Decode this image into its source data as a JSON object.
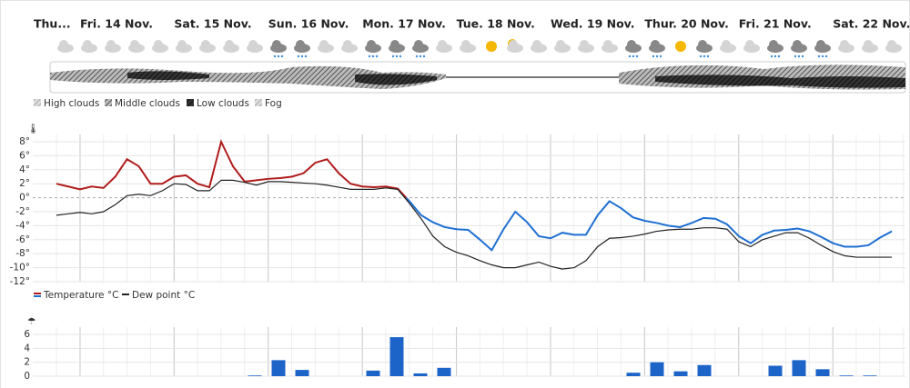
{
  "days": [
    "Thu...",
    "Fri. 14 Nov.",
    "Sat. 15 Nov.",
    "Sun. 16 Nov.",
    "Mon. 17 Nov.",
    "Tue. 18 Nov.",
    "Wed. 19 Nov.",
    "Thur. 20 Nov.",
    "Fri. 21 Nov.",
    "Sat. 22 Nov."
  ],
  "cloud_legend": [
    "High clouds",
    "Middle clouds",
    "Low clouds",
    "Fog"
  ],
  "chart_data": [
    {
      "type": "line",
      "ylim": [
        -12,
        8
      ],
      "yticks": [
        {
          "value": 8,
          "label": "8°"
        },
        {
          "value": 6,
          "label": "6°"
        },
        {
          "value": 4,
          "label": "4°"
        },
        {
          "value": 2,
          "label": "2°"
        },
        {
          "value": 0,
          "label": "0°"
        },
        {
          "value": -2,
          "label": "-2°"
        },
        {
          "value": -4,
          "label": "-4°"
        },
        {
          "value": -6,
          "label": "-6°"
        },
        {
          "value": -8,
          "label": "-8°"
        },
        {
          "value": -10,
          "label": "-10°"
        },
        {
          "value": -12,
          "label": "-12°"
        }
      ],
      "grid": true,
      "zero_line": true,
      "series": [
        {
          "name": "Temperature °C",
          "color": "#b01c1c",
          "negative_color": "#1f6fd1",
          "values": [
            2.0,
            1.6,
            1.2,
            1.6,
            1.4,
            3.0,
            5.5,
            4.5,
            2.0,
            2.0,
            3.0,
            3.2,
            2.0,
            1.5,
            8.0,
            4.5,
            2.3,
            2.5,
            2.7,
            2.8,
            3.0,
            3.5,
            5.0,
            5.5,
            3.5,
            2.0,
            1.6,
            1.5,
            1.6,
            1.3,
            -0.5,
            -2.5,
            -3.5,
            -4.2,
            -4.5,
            -4.6,
            -6.0,
            -7.5,
            -4.5,
            -2.0,
            -3.5,
            -5.5,
            -5.8,
            -5.0,
            -5.3,
            -5.3,
            -2.5,
            -0.5,
            -1.5,
            -2.8,
            -3.3,
            -3.6,
            -4.0,
            -4.2,
            -3.6,
            -2.9,
            -3.0,
            -3.8,
            -5.5,
            -6.5,
            -5.3,
            -4.7,
            -4.6,
            -4.4,
            -4.8,
            -5.6,
            -6.5,
            -7.0,
            -7.0,
            -6.8,
            -5.7,
            -4.8
          ]
        },
        {
          "name": "Dew point °C",
          "color": "#222222",
          "values": [
            -2.5,
            -2.3,
            -2.1,
            -2.3,
            -2.0,
            -1.0,
            0.3,
            0.5,
            0.3,
            1.0,
            2.0,
            1.9,
            1.0,
            1.0,
            2.5,
            2.5,
            2.2,
            1.8,
            2.3,
            2.3,
            2.2,
            2.1,
            2.0,
            1.8,
            1.5,
            1.2,
            1.2,
            1.2,
            1.4,
            1.2,
            -0.8,
            -3.0,
            -5.5,
            -7.0,
            -7.8,
            -8.3,
            -9.0,
            -9.6,
            -10.0,
            -10.0,
            -9.6,
            -9.2,
            -9.8,
            -10.2,
            -10.0,
            -9.0,
            -7.0,
            -5.8,
            -5.7,
            -5.5,
            -5.2,
            -4.8,
            -4.6,
            -4.5,
            -4.5,
            -4.3,
            -4.3,
            -4.5,
            -6.3,
            -7.0,
            -6.0,
            -5.5,
            -5.0,
            -5.0,
            -5.8,
            -6.8,
            -7.7,
            -8.3,
            -8.5,
            -8.5,
            -8.5,
            -8.5
          ]
        }
      ]
    },
    {
      "type": "bar",
      "color": "#1c64c8",
      "ylim": [
        0,
        6
      ],
      "yticks": [
        0,
        2,
        4,
        6
      ],
      "grid": true,
      "values": [
        0,
        0,
        0,
        0,
        0,
        0,
        0,
        0,
        0.1,
        2.3,
        0.9,
        0,
        0,
        0.8,
        5.6,
        0.4,
        1.2,
        0,
        0,
        0,
        0,
        0,
        0,
        0,
        0.5,
        2.0,
        0.7,
        1.6,
        0,
        0,
        1.5,
        2.3,
        1.0,
        0.1,
        0.1,
        0
      ]
    }
  ]
}
